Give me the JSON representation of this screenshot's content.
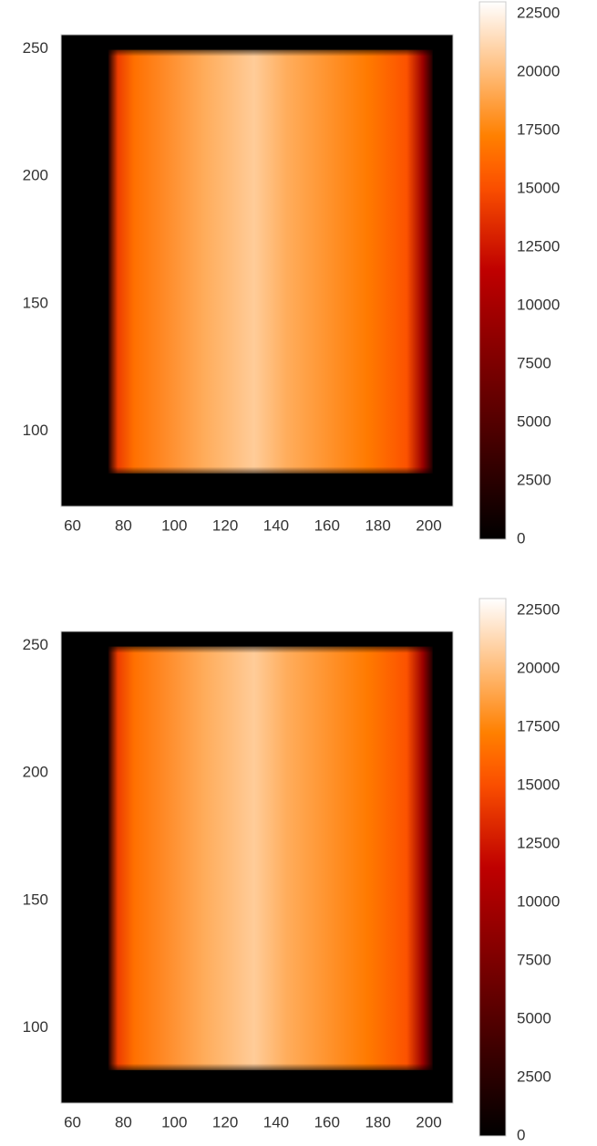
{
  "chart_data": [
    {
      "type": "image",
      "colormap": "gist_heat",
      "xlim": [
        55.5,
        209.5
      ],
      "xticks": [
        60,
        80,
        100,
        120,
        140,
        160,
        180,
        200
      ],
      "ylim": [
        70.5,
        255.5
      ],
      "yticks": [
        100,
        150,
        200,
        250
      ],
      "clim": [
        0,
        23000
      ],
      "cticks": [
        0,
        2500,
        5000,
        7500,
        10000,
        12500,
        15000,
        17500,
        20000,
        22500
      ]
    },
    {
      "type": "image",
      "colormap": "gist_heat",
      "xlim": [
        55.5,
        209.5
      ],
      "xticks": [
        60,
        80,
        100,
        120,
        140,
        160,
        180,
        200
      ],
      "ylim": [
        70.5,
        255.5
      ],
      "yticks": [
        100,
        150,
        200,
        250
      ],
      "clim": [
        0,
        23000
      ],
      "cticks": [
        0,
        2500,
        5000,
        7500,
        10000,
        12500,
        15000,
        17500,
        20000,
        22500
      ]
    }
  ]
}
